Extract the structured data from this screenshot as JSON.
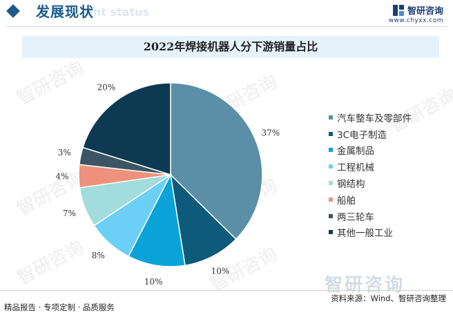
{
  "header": {
    "title": "发展现状",
    "subtitle_en": "ent status",
    "brand_name": "智研咨询",
    "brand_url": "www.chyxx.com"
  },
  "chart_data": {
    "type": "pie",
    "title": "2022年焊接机器人分下游销量占比",
    "categories": [
      "汽车整车及零部件",
      "3C电子制造",
      "金属制品",
      "工程机械",
      "钢结构",
      "船舶",
      "两三轮车",
      "其他一般工业"
    ],
    "values": [
      37,
      10,
      10,
      8,
      7,
      4,
      3,
      20
    ],
    "labels": [
      "37%",
      "10%",
      "10%",
      "8%",
      "7%",
      "4%",
      "3%",
      "20%"
    ],
    "colors": [
      "#5b8fa8",
      "#0e5a7a",
      "#0aa3d8",
      "#6ccff6",
      "#a2dcdc",
      "#ef917c",
      "#3c5565",
      "#0d3a52"
    ],
    "legend_position": "right"
  },
  "watermark": "智研咨询",
  "footer": {
    "left": "精品报告 · 专项定制 · 品质服务",
    "source": "资料来源：Wind、智研咨询整理"
  }
}
